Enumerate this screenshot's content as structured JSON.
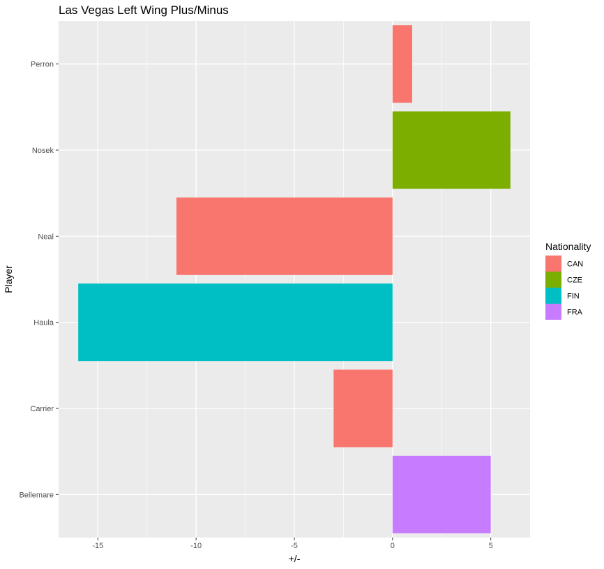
{
  "chart_data": {
    "type": "bar",
    "orientation": "horizontal",
    "title": "Las Vegas Left Wing Plus/Minus",
    "xlabel": "+/-",
    "ylabel": "Player",
    "xlim": [
      -17,
      7
    ],
    "x_ticks": [
      -15,
      -10,
      -5,
      0,
      5
    ],
    "grid": true,
    "legend": {
      "title": "Nationality",
      "position": "right"
    },
    "categories": [
      "Perron",
      "Nosek",
      "Neal",
      "Haula",
      "Carrier",
      "Bellemare"
    ],
    "values": [
      1,
      6,
      -11,
      -16,
      -3,
      5
    ],
    "groups": [
      "CAN",
      "CZE",
      "CAN",
      "FIN",
      "CAN",
      "FRA"
    ],
    "group_colors": {
      "CAN": "#F8766D",
      "CZE": "#7CAE00",
      "FIN": "#00BFC4",
      "FRA": "#C77CFF"
    },
    "legend_entries": [
      "CAN",
      "CZE",
      "FIN",
      "FRA"
    ]
  }
}
